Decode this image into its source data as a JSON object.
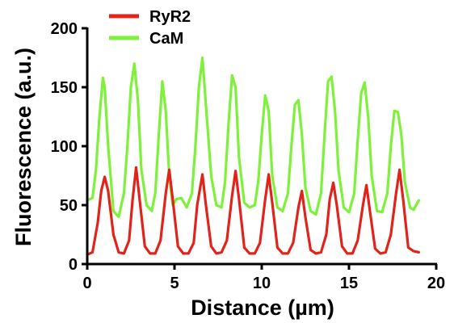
{
  "chart_data": {
    "type": "line",
    "xlabel_text": "Distance (",
    "xlabel_unit": "µm",
    "xlabel_close": ")",
    "ylabel": "Fluorescence (a.u.)",
    "xlim": [
      0,
      20
    ],
    "ylim": [
      0,
      200
    ],
    "xticks": [
      0,
      5,
      10,
      15,
      20
    ],
    "yticks": [
      0,
      50,
      100,
      150,
      200
    ],
    "x_tick_labels": [
      "0",
      "5",
      "10",
      "15",
      "20"
    ],
    "y_tick_labels": [
      "0",
      "50",
      "100",
      "150",
      "200"
    ],
    "grid": false,
    "legend_position": "top-left",
    "series": [
      {
        "name": "RyR2",
        "color": "#e2231a",
        "x": [
          0.0,
          0.3,
          0.6,
          0.8,
          1.0,
          1.2,
          1.5,
          1.8,
          2.1,
          2.4,
          2.6,
          2.8,
          3.0,
          3.3,
          3.6,
          3.9,
          4.2,
          4.5,
          4.7,
          4.9,
          5.2,
          5.5,
          5.8,
          6.1,
          6.3,
          6.6,
          6.8,
          7.1,
          7.4,
          7.7,
          8.0,
          8.3,
          8.5,
          8.7,
          9.0,
          9.3,
          9.6,
          9.9,
          10.2,
          10.4,
          10.6,
          10.9,
          11.2,
          11.5,
          11.8,
          12.1,
          12.3,
          12.5,
          12.8,
          13.1,
          13.4,
          13.7,
          13.9,
          14.1,
          14.3,
          14.6,
          14.9,
          15.2,
          15.5,
          15.8,
          16.0,
          16.2,
          16.5,
          16.8,
          17.1,
          17.4,
          17.7,
          17.9,
          18.1,
          18.4,
          18.7,
          19.0
        ],
        "values": [
          8,
          10,
          35,
          62,
          74,
          62,
          25,
          10,
          9,
          20,
          55,
          82,
          55,
          15,
          9,
          9,
          20,
          60,
          80,
          55,
          15,
          9,
          9,
          18,
          50,
          76,
          50,
          15,
          9,
          10,
          20,
          58,
          79,
          55,
          14,
          9,
          9,
          18,
          55,
          76,
          52,
          14,
          9,
          9,
          18,
          48,
          62,
          40,
          12,
          9,
          10,
          25,
          55,
          69,
          50,
          15,
          9,
          9,
          20,
          50,
          67,
          45,
          13,
          9,
          10,
          25,
          60,
          80,
          55,
          14,
          11,
          10
        ]
      },
      {
        "name": "CaM",
        "color": "#7ef23a",
        "x": [
          0.0,
          0.3,
          0.5,
          0.7,
          0.9,
          1.0,
          1.2,
          1.5,
          1.8,
          2.1,
          2.3,
          2.5,
          2.7,
          2.9,
          3.1,
          3.4,
          3.7,
          3.9,
          4.1,
          4.3,
          4.5,
          4.7,
          4.9,
          5.1,
          5.4,
          5.7,
          6.0,
          6.2,
          6.4,
          6.6,
          6.8,
          7.1,
          7.4,
          7.7,
          7.9,
          8.1,
          8.3,
          8.5,
          8.7,
          9.0,
          9.3,
          9.6,
          9.8,
          10.0,
          10.2,
          10.4,
          10.6,
          10.9,
          11.2,
          11.5,
          11.7,
          11.9,
          12.1,
          12.3,
          12.5,
          12.8,
          13.1,
          13.4,
          13.6,
          13.8,
          14.0,
          14.2,
          14.4,
          14.7,
          15.0,
          15.3,
          15.5,
          15.7,
          15.9,
          16.1,
          16.3,
          16.6,
          16.9,
          17.2,
          17.4,
          17.6,
          17.8,
          18.0,
          18.2,
          18.5,
          18.7,
          19.0
        ],
        "values": [
          54,
          56,
          80,
          125,
          158,
          150,
          100,
          45,
          40,
          60,
          100,
          150,
          170,
          140,
          80,
          50,
          45,
          60,
          110,
          155,
          130,
          75,
          50,
          55,
          56,
          48,
          60,
          100,
          150,
          175,
          135,
          75,
          50,
          48,
          70,
          120,
          160,
          150,
          90,
          52,
          48,
          50,
          70,
          110,
          143,
          130,
          75,
          48,
          45,
          60,
          100,
          135,
          139,
          110,
          65,
          45,
          42,
          60,
          110,
          155,
          159,
          130,
          80,
          48,
          44,
          60,
          105,
          145,
          154,
          125,
          75,
          45,
          44,
          60,
          100,
          130,
          129,
          110,
          70,
          48,
          46,
          54
        ]
      }
    ]
  }
}
